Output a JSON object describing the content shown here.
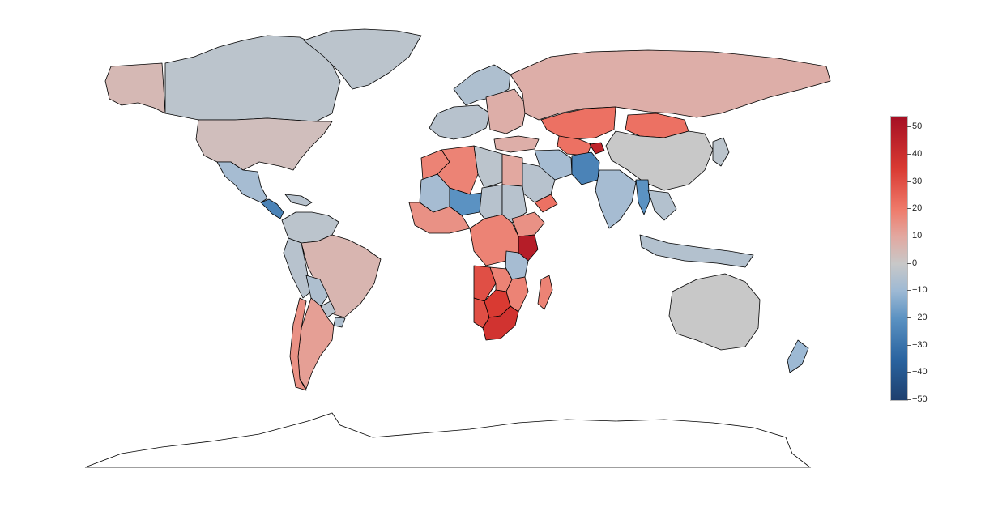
{
  "map": {
    "projection": "equirectangular-like world",
    "border_color": "#000000",
    "ocean_color": "#ffffff",
    "antarctica_fill": "#ffffff"
  },
  "legend": {
    "title": "",
    "min": -50,
    "max": 54,
    "ticks": [
      {
        "value": 50,
        "label": "50"
      },
      {
        "value": 40,
        "label": "40"
      },
      {
        "value": 30,
        "label": "30"
      },
      {
        "value": 20,
        "label": "20"
      },
      {
        "value": 10,
        "label": "10"
      },
      {
        "value": 0,
        "label": "0"
      },
      {
        "value": -10,
        "label": "−10"
      },
      {
        "value": -20,
        "label": "−20"
      },
      {
        "value": -30,
        "label": "−30"
      },
      {
        "value": -40,
        "label": "−40"
      },
      {
        "value": -50,
        "label": "−50"
      }
    ],
    "colors": {
      "high": "#a50f24",
      "mid": "#c8c8c8",
      "low": "#1e3f6e"
    }
  },
  "regions": [
    {
      "name": "Alaska",
      "value": 5
    },
    {
      "name": "Canada",
      "value": -3
    },
    {
      "name": "Greenland",
      "value": -3
    },
    {
      "name": "USA",
      "value": 3
    },
    {
      "name": "Mexico",
      "value": -8
    },
    {
      "name": "Central America",
      "value": -25
    },
    {
      "name": "Caribbean",
      "value": -4
    },
    {
      "name": "Venezuela / Colombia",
      "value": -3
    },
    {
      "name": "Peru",
      "value": -4
    },
    {
      "name": "Brazil",
      "value": 6
    },
    {
      "name": "Bolivia",
      "value": -6
    },
    {
      "name": "Paraguay",
      "value": -4
    },
    {
      "name": "Uruguay",
      "value": -6
    },
    {
      "name": "Argentina",
      "value": 12
    },
    {
      "name": "Chile",
      "value": 15
    },
    {
      "name": "Northern Europe",
      "value": -6
    },
    {
      "name": "Western Europe",
      "value": -4
    },
    {
      "name": "Eastern Europe",
      "value": 8
    },
    {
      "name": "Russia",
      "value": 8
    },
    {
      "name": "Kazakhstan",
      "value": 22
    },
    {
      "name": "Mongolia",
      "value": 22
    },
    {
      "name": "China",
      "value": 0
    },
    {
      "name": "Japan / Korea",
      "value": -3
    },
    {
      "name": "Central Asia",
      "value": 22
    },
    {
      "name": "Turkey",
      "value": 8
    },
    {
      "name": "Iran",
      "value": -8
    },
    {
      "name": "Afghanistan / Pakistan",
      "value": -25
    },
    {
      "name": "Tajikistan",
      "value": 45
    },
    {
      "name": "Saudi Arabia",
      "value": -4
    },
    {
      "name": "Yemen",
      "value": 22
    },
    {
      "name": "India",
      "value": -8
    },
    {
      "name": "Myanmar",
      "value": -20
    },
    {
      "name": "Southeast Asia",
      "value": -5
    },
    {
      "name": "Indonesia",
      "value": -5
    },
    {
      "name": "Australia",
      "value": 0
    },
    {
      "name": "New Zealand",
      "value": -10
    },
    {
      "name": "Morocco",
      "value": 18
    },
    {
      "name": "Algeria",
      "value": 18
    },
    {
      "name": "Libya",
      "value": -3
    },
    {
      "name": "Egypt",
      "value": 10
    },
    {
      "name": "Mali",
      "value": -8
    },
    {
      "name": "Niger",
      "value": -20
    },
    {
      "name": "Chad",
      "value": -4
    },
    {
      "name": "Sudan",
      "value": -4
    },
    {
      "name": "Ethiopia",
      "value": 15
    },
    {
      "name": "Kenya",
      "value": 48
    },
    {
      "name": "West Africa",
      "value": 15
    },
    {
      "name": "Central Africa",
      "value": 18
    },
    {
      "name": "Tanzania",
      "value": -8
    },
    {
      "name": "Angola",
      "value": 30
    },
    {
      "name": "Zambia",
      "value": 18
    },
    {
      "name": "Mozambique",
      "value": 18
    },
    {
      "name": "Namibia",
      "value": 30
    },
    {
      "name": "Botswana / Zimbabwe",
      "value": 35
    },
    {
      "name": "South Africa",
      "value": 38
    },
    {
      "name": "Madagascar",
      "value": 18
    }
  ]
}
